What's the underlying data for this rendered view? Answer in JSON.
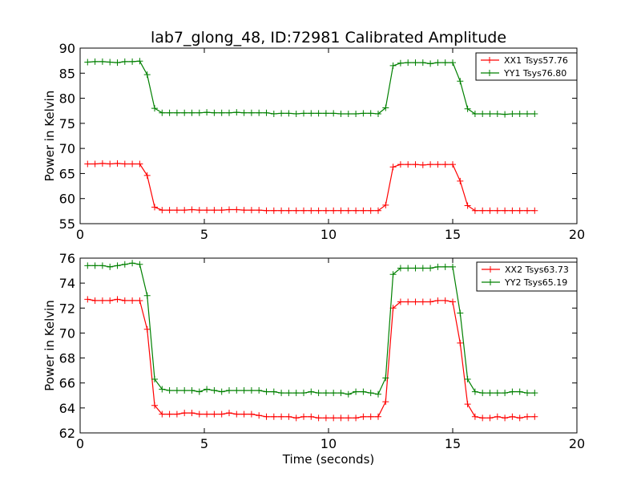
{
  "figure": {
    "title": "lab7_glong_48, ID:72981 Calibrated Amplitude"
  },
  "chart_data": [
    {
      "type": "line",
      "title": "lab7_glong_48, ID:72981 Calibrated Amplitude",
      "xlabel": "",
      "ylabel": "Power in Kelvin",
      "xlim": [
        0,
        20
      ],
      "ylim": [
        55,
        90
      ],
      "xticks": [
        0,
        5,
        10,
        15,
        20
      ],
      "yticks": [
        55,
        60,
        65,
        70,
        75,
        80,
        85,
        90
      ],
      "grid": false,
      "legend": "top-right",
      "x": [
        0.3,
        0.6,
        0.9,
        1.2,
        1.5,
        1.8,
        2.1,
        2.4,
        2.7,
        3.0,
        3.3,
        3.6,
        3.9,
        4.2,
        4.5,
        4.8,
        5.1,
        5.4,
        5.7,
        6.0,
        6.3,
        6.6,
        6.9,
        7.2,
        7.5,
        7.8,
        8.1,
        8.4,
        8.7,
        9.0,
        9.3,
        9.6,
        9.9,
        10.2,
        10.5,
        10.8,
        11.1,
        11.4,
        11.7,
        12.0,
        12.3,
        12.6,
        12.9,
        13.2,
        13.5,
        13.8,
        14.1,
        14.4,
        14.7,
        15.0,
        15.3,
        15.6,
        15.9,
        16.2,
        16.5,
        16.8,
        17.1,
        17.4,
        17.7,
        18.0,
        18.3
      ],
      "series": [
        {
          "name": "XX1 Tsys57.76",
          "color": "#ff0000",
          "values": [
            66.9,
            66.9,
            67.0,
            66.9,
            67.0,
            66.9,
            66.9,
            66.9,
            64.6,
            58.3,
            57.7,
            57.7,
            57.7,
            57.7,
            57.8,
            57.7,
            57.7,
            57.7,
            57.7,
            57.8,
            57.8,
            57.7,
            57.7,
            57.7,
            57.6,
            57.6,
            57.6,
            57.6,
            57.6,
            57.6,
            57.6,
            57.6,
            57.6,
            57.6,
            57.6,
            57.6,
            57.6,
            57.6,
            57.6,
            57.6,
            58.7,
            66.3,
            66.8,
            66.8,
            66.8,
            66.7,
            66.8,
            66.8,
            66.8,
            66.8,
            63.5,
            58.6,
            57.6,
            57.6,
            57.6,
            57.6,
            57.6,
            57.6,
            57.6,
            57.6,
            57.6
          ]
        },
        {
          "name": "YY1 Tsys76.80",
          "color": "#008000",
          "values": [
            87.2,
            87.3,
            87.3,
            87.2,
            87.1,
            87.3,
            87.3,
            87.4,
            84.7,
            78.0,
            77.1,
            77.1,
            77.1,
            77.1,
            77.1,
            77.1,
            77.2,
            77.1,
            77.1,
            77.1,
            77.2,
            77.1,
            77.1,
            77.1,
            77.1,
            76.9,
            77.0,
            77.0,
            76.9,
            77.0,
            77.0,
            77.0,
            77.0,
            77.0,
            76.9,
            76.9,
            76.9,
            77.0,
            77.0,
            76.9,
            78.1,
            86.5,
            87.0,
            87.1,
            87.1,
            87.1,
            86.9,
            87.1,
            87.1,
            87.1,
            83.4,
            77.9,
            76.9,
            76.9,
            76.9,
            76.9,
            76.8,
            76.9,
            76.9,
            76.9,
            76.9
          ]
        }
      ]
    },
    {
      "type": "line",
      "title": "",
      "xlabel": "Time (seconds)",
      "ylabel": "Power in Kelvin",
      "xlim": [
        0,
        20
      ],
      "ylim": [
        62,
        76
      ],
      "xticks": [
        0,
        5,
        10,
        15,
        20
      ],
      "yticks": [
        62,
        64,
        66,
        68,
        70,
        72,
        74,
        76
      ],
      "grid": false,
      "legend": "top-right",
      "x": [
        0.3,
        0.6,
        0.9,
        1.2,
        1.5,
        1.8,
        2.1,
        2.4,
        2.7,
        3.0,
        3.3,
        3.6,
        3.9,
        4.2,
        4.5,
        4.8,
        5.1,
        5.4,
        5.7,
        6.0,
        6.3,
        6.6,
        6.9,
        7.2,
        7.5,
        7.8,
        8.1,
        8.4,
        8.7,
        9.0,
        9.3,
        9.6,
        9.9,
        10.2,
        10.5,
        10.8,
        11.1,
        11.4,
        11.7,
        12.0,
        12.3,
        12.6,
        12.9,
        13.2,
        13.5,
        13.8,
        14.1,
        14.4,
        14.7,
        15.0,
        15.3,
        15.6,
        15.9,
        16.2,
        16.5,
        16.8,
        17.1,
        17.4,
        17.7,
        18.0,
        18.3
      ],
      "series": [
        {
          "name": "XX2 Tsys63.73",
          "color": "#ff0000",
          "values": [
            72.7,
            72.6,
            72.6,
            72.6,
            72.7,
            72.6,
            72.6,
            72.6,
            70.3,
            64.2,
            63.5,
            63.5,
            63.5,
            63.6,
            63.6,
            63.5,
            63.5,
            63.5,
            63.5,
            63.6,
            63.5,
            63.5,
            63.5,
            63.4,
            63.3,
            63.3,
            63.3,
            63.3,
            63.2,
            63.3,
            63.3,
            63.2,
            63.2,
            63.2,
            63.2,
            63.2,
            63.2,
            63.3,
            63.3,
            63.3,
            64.5,
            72.0,
            72.5,
            72.5,
            72.5,
            72.5,
            72.5,
            72.6,
            72.6,
            72.5,
            69.2,
            64.3,
            63.3,
            63.2,
            63.2,
            63.3,
            63.2,
            63.3,
            63.2,
            63.3,
            63.3
          ]
        },
        {
          "name": "YY2 Tsys65.19",
          "color": "#008000",
          "values": [
            75.4,
            75.4,
            75.4,
            75.3,
            75.4,
            75.5,
            75.6,
            75.5,
            73.0,
            66.3,
            65.5,
            65.4,
            65.4,
            65.4,
            65.4,
            65.3,
            65.5,
            65.4,
            65.3,
            65.4,
            65.4,
            65.4,
            65.4,
            65.4,
            65.3,
            65.3,
            65.2,
            65.2,
            65.2,
            65.2,
            65.3,
            65.2,
            65.2,
            65.2,
            65.2,
            65.1,
            65.3,
            65.3,
            65.2,
            65.1,
            66.4,
            74.7,
            75.2,
            75.2,
            75.2,
            75.2,
            75.2,
            75.3,
            75.3,
            75.3,
            71.6,
            66.3,
            65.3,
            65.2,
            65.2,
            65.2,
            65.2,
            65.3,
            65.3,
            65.2,
            65.2
          ]
        }
      ]
    }
  ]
}
